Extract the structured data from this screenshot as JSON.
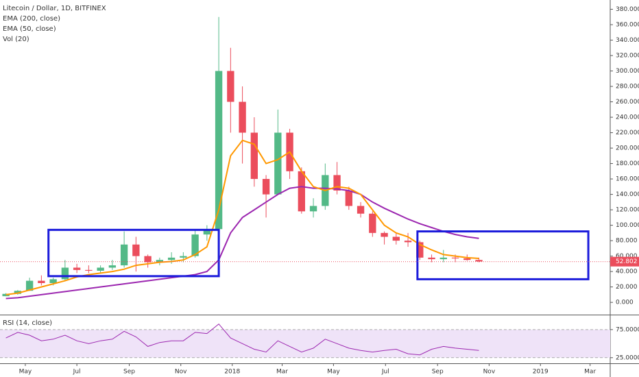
{
  "chart_data": [
    {
      "type": "candlestick",
      "title": "Litecoin / Dollar, 1D, BITFINEX",
      "volume_label": "Vol (20)",
      "open": [
        8,
        11,
        15,
        28,
        25,
        30,
        45,
        42,
        41,
        45,
        48,
        75,
        60,
        52,
        55,
        58,
        60,
        88,
        95,
        300,
        260,
        220,
        160,
        140,
        220,
        170,
        118,
        125,
        165,
        145,
        125,
        115,
        90,
        85,
        80,
        78,
        58,
        56,
        58,
        57,
        55
      ],
      "high": [
        12,
        16,
        32,
        35,
        32,
        55,
        50,
        48,
        48,
        55,
        92,
        85,
        62,
        58,
        65,
        65,
        95,
        100,
        370,
        330,
        280,
        240,
        165,
        250,
        225,
        175,
        135,
        180,
        182,
        150,
        130,
        118,
        92,
        90,
        90,
        80,
        62,
        68,
        62,
        62,
        58
      ],
      "low": [
        8,
        10,
        15,
        22,
        22,
        28,
        38,
        38,
        38,
        42,
        45,
        40,
        45,
        48,
        50,
        52,
        58,
        80,
        95,
        220,
        180,
        150,
        110,
        140,
        160,
        115,
        110,
        120,
        140,
        120,
        110,
        85,
        75,
        75,
        72,
        55,
        52,
        52,
        52,
        54,
        52
      ],
      "close": [
        11,
        15,
        28,
        25,
        30,
        45,
        42,
        41,
        45,
        48,
        75,
        60,
        52,
        55,
        58,
        60,
        88,
        95,
        300,
        260,
        220,
        160,
        140,
        220,
        170,
        118,
        125,
        165,
        145,
        125,
        115,
        90,
        85,
        80,
        78,
        58,
        56,
        58,
        57,
        55,
        53
      ],
      "up_color": "#53b987",
      "down_color": "#eb4d5c",
      "series": [
        {
          "name": "EMA (200, close)",
          "color": "#9c27b0",
          "values": [
            5,
            6,
            8,
            10,
            12,
            14,
            16,
            18,
            20,
            22,
            24,
            26,
            28,
            30,
            32,
            34,
            36,
            40,
            55,
            90,
            110,
            120,
            130,
            140,
            148,
            150,
            148,
            148,
            147,
            145,
            140,
            130,
            122,
            115,
            108,
            102,
            97,
            92,
            88,
            85,
            83
          ]
        },
        {
          "name": "EMA (50, close)",
          "color": "#ff9800",
          "values": [
            10,
            12,
            16,
            20,
            24,
            28,
            33,
            36,
            38,
            40,
            43,
            48,
            50,
            52,
            53,
            55,
            62,
            72,
            120,
            190,
            210,
            205,
            180,
            185,
            195,
            170,
            150,
            145,
            150,
            148,
            140,
            120,
            100,
            90,
            85,
            75,
            68,
            62,
            60,
            58,
            57
          ]
        }
      ],
      "last_price": 52.802,
      "last_color": "#eb4d5c",
      "boxes": [
        {
          "x": [
            4.1,
            18.5
          ],
          "y": [
            34,
            94
          ],
          "color": "#1a1adb"
        },
        {
          "x": [
            35.3,
            49.75
          ],
          "y": [
            30,
            92
          ],
          "color": "#1a1adb"
        }
      ],
      "xlim": [
        0,
        51.6
      ],
      "ylim": [
        -15,
        392
      ],
      "yticks": [
        {
          "value": 0,
          "label": "0.000"
        },
        {
          "value": 20,
          "label": "20.000"
        },
        {
          "value": 40,
          "label": "40.000"
        },
        {
          "value": 60,
          "label": "60.000"
        },
        {
          "value": 80,
          "label": "80.000"
        },
        {
          "value": 100,
          "label": "100.000"
        },
        {
          "value": 120,
          "label": "120.000"
        },
        {
          "value": 140,
          "label": "140.000"
        },
        {
          "value": 160,
          "label": "160.000"
        },
        {
          "value": 180,
          "label": "180.000"
        },
        {
          "value": 200,
          "label": "200.000"
        },
        {
          "value": 220,
          "label": "220.000"
        },
        {
          "value": 240,
          "label": "240.000"
        },
        {
          "value": 260,
          "label": "260.000"
        },
        {
          "value": 280,
          "label": "280.000"
        },
        {
          "value": 300,
          "label": "300.000"
        },
        {
          "value": 320,
          "label": "320.000"
        },
        {
          "value": 340,
          "label": "340.000"
        },
        {
          "value": 360,
          "label": "360.000"
        },
        {
          "value": 380,
          "label": "380.000"
        }
      ]
    },
    {
      "type": "line",
      "title": "RSI (14, close)",
      "series": [
        {
          "color": "#9c27b0",
          "values": [
            60,
            70,
            65,
            55,
            58,
            65,
            55,
            50,
            55,
            58,
            72,
            62,
            45,
            52,
            55,
            55,
            70,
            68,
            85,
            60,
            50,
            40,
            35,
            55,
            45,
            35,
            42,
            58,
            50,
            42,
            38,
            35,
            38,
            40,
            32,
            30,
            40,
            45,
            42,
            40,
            38
          ]
        }
      ],
      "band_color": "#efe3f8",
      "xlim": [
        0,
        51.6
      ],
      "ylim": [
        15,
        98
      ],
      "yticks": [
        {
          "value": 25,
          "label": "25.0000"
        },
        {
          "value": 75,
          "label": "75.0000"
        }
      ],
      "xticks": [
        {
          "value": 2.14,
          "label": "May"
        },
        {
          "value": 6.5,
          "label": "Jul"
        },
        {
          "value": 10.93,
          "label": "Sep"
        },
        {
          "value": 15.29,
          "label": "Nov"
        },
        {
          "value": 19.64,
          "label": "2018"
        },
        {
          "value": 23.86,
          "label": "Mar"
        },
        {
          "value": 28.2,
          "label": "May"
        },
        {
          "value": 32.6,
          "label": "Jul"
        },
        {
          "value": 37,
          "label": "Sep"
        },
        {
          "value": 41.36,
          "label": "Nov"
        },
        {
          "value": 45.7,
          "label": "2019"
        },
        {
          "value": 49.9,
          "label": "Mar"
        }
      ]
    }
  ]
}
